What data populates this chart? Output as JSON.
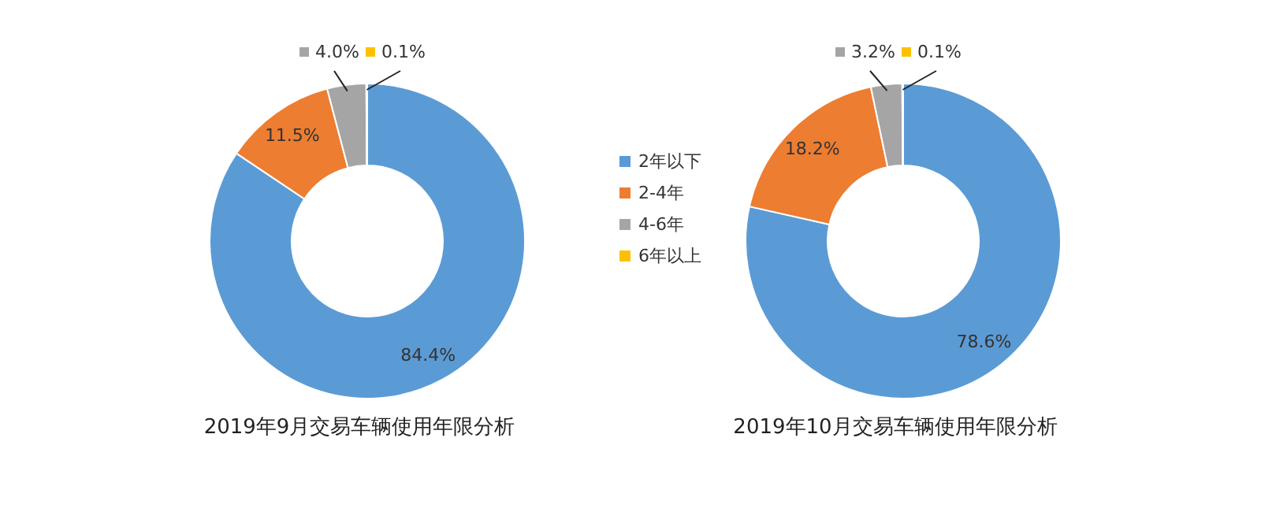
{
  "chart_data": [
    {
      "type": "donut",
      "title": "2019年9月交易车辆使用年限分析",
      "categories": [
        "2年以下",
        "2-4年",
        "4-6年",
        "6年以上"
      ],
      "values": [
        84.4,
        11.5,
        4.0,
        0.1
      ],
      "value_labels": [
        "84.4%",
        "11.5%",
        "4.0%",
        "0.1%"
      ],
      "colors": [
        "#5b9bd5",
        "#ed7d31",
        "#a5a5a5",
        "#ffc000"
      ],
      "legend": "right"
    },
    {
      "type": "donut",
      "title": "2019年10月交易车辆使用年限分析",
      "categories": [
        null,
        null,
        null,
        null
      ],
      "values": [
        78.6,
        18.2,
        3.2,
        0.1
      ],
      "value_labels": [
        "78.6%",
        "18.2%",
        "3.2%",
        "0.1%"
      ],
      "colors": [
        "#5b9bd5",
        "#ed7d31",
        "#a5a5a5",
        "#ffc000"
      ],
      "legend": false
    }
  ]
}
